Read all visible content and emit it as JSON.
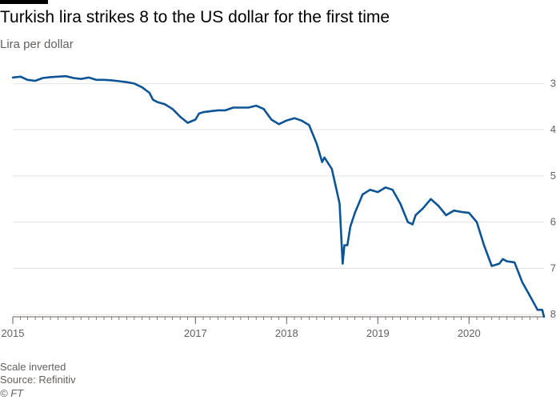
{
  "header": {
    "title": "Turkish lira strikes 8 to the US dollar for the first time",
    "subtitle": "Lira per dollar"
  },
  "footer": {
    "note": "Scale inverted",
    "source": "Source: Refinitiv",
    "credit": "© FT"
  },
  "colors": {
    "line": "#0d5496",
    "grid": "#e6e1dc",
    "axis": "#66605c"
  },
  "chart_data": {
    "type": "line",
    "title": "Turkish lira strikes 8 to the US dollar for the first time",
    "ylabel": "Lira per dollar",
    "y_inverted": true,
    "ylim": [
      2.75,
      8.05
    ],
    "xlim": [
      "2015-01-01",
      "2020-10-27"
    ],
    "y_ticks": [
      3,
      4,
      5,
      6,
      7,
      8
    ],
    "y_tick_labels": [
      "3",
      "4",
      "5",
      "6",
      "7",
      "8"
    ],
    "x_ticks": [
      "2015-01-01",
      "2017-01-01",
      "2018-01-01",
      "2019-01-01",
      "2020-01-01"
    ],
    "x_tick_labels": [
      "2015",
      "2017",
      "2018",
      "2019",
      "2020"
    ],
    "grid": true,
    "series": [
      {
        "x": [
          "2015-01-01",
          "2015-02-01",
          "2015-03-01",
          "2015-04-01",
          "2015-05-01",
          "2015-06-01",
          "2015-07-01",
          "2015-08-01",
          "2015-09-01",
          "2015-10-01",
          "2015-11-01",
          "2015-12-01",
          "2016-01-01",
          "2016-02-01",
          "2016-03-01",
          "2016-04-01",
          "2016-05-01",
          "2016-06-01",
          "2016-07-01",
          "2016-07-15",
          "2016-08-01",
          "2016-09-01",
          "2016-10-01",
          "2016-11-01",
          "2016-12-01",
          "2017-01-01",
          "2017-01-15",
          "2017-02-01",
          "2017-03-01",
          "2017-04-01",
          "2017-05-01",
          "2017-06-01",
          "2017-07-01",
          "2017-08-01",
          "2017-09-01",
          "2017-10-01",
          "2017-11-01",
          "2017-12-01",
          "2018-01-01",
          "2018-02-01",
          "2018-03-01",
          "2018-04-01",
          "2018-05-01",
          "2018-05-23",
          "2018-06-01",
          "2018-07-01",
          "2018-08-01",
          "2018-08-13",
          "2018-08-20",
          "2018-09-01",
          "2018-09-13",
          "2018-10-01",
          "2018-11-01",
          "2018-12-01",
          "2019-01-01",
          "2019-02-01",
          "2019-03-01",
          "2019-04-01",
          "2019-05-01",
          "2019-05-20",
          "2019-06-01",
          "2019-07-01",
          "2019-08-01",
          "2019-09-01",
          "2019-10-01",
          "2019-11-01",
          "2019-12-01",
          "2020-01-01",
          "2020-02-01",
          "2020-03-01",
          "2020-04-01",
          "2020-05-01",
          "2020-05-15",
          "2020-06-01",
          "2020-07-01",
          "2020-08-01",
          "2020-09-01",
          "2020-10-01",
          "2020-10-20",
          "2020-10-27"
        ],
        "values": [
          2.87,
          2.85,
          2.92,
          2.94,
          2.88,
          2.86,
          2.85,
          2.84,
          2.88,
          2.9,
          2.87,
          2.92,
          2.92,
          2.93,
          2.95,
          2.97,
          3.0,
          3.08,
          3.2,
          3.35,
          3.4,
          3.45,
          3.55,
          3.72,
          3.85,
          3.78,
          3.65,
          3.62,
          3.6,
          3.58,
          3.58,
          3.52,
          3.52,
          3.52,
          3.48,
          3.55,
          3.78,
          3.88,
          3.8,
          3.75,
          3.8,
          3.9,
          4.3,
          4.7,
          4.6,
          4.85,
          5.6,
          6.9,
          6.5,
          6.5,
          6.1,
          5.8,
          5.4,
          5.3,
          5.35,
          5.25,
          5.3,
          5.6,
          6.0,
          6.05,
          5.85,
          5.7,
          5.5,
          5.65,
          5.85,
          5.75,
          5.78,
          5.8,
          6.0,
          6.5,
          6.95,
          6.9,
          6.8,
          6.85,
          6.87,
          7.3,
          7.6,
          7.9,
          7.9,
          8.05
        ]
      }
    ]
  }
}
